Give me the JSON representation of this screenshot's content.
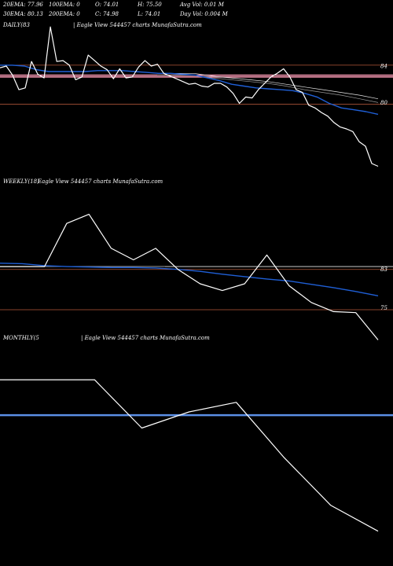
{
  "header": {
    "ema20": "20EMA: 77.96",
    "ema100": "100EMA: 0",
    "open": "O: 74.01",
    "high": "H: 75.50",
    "avgvol": "Avg Vol: 0.01 M",
    "ema30": "30EMA: 80.13",
    "ema200": "200EMA: 0",
    "close": "C: 74.98",
    "low": "L: 74.01",
    "dayvol": "Day Vol: 0.004  M"
  },
  "colors": {
    "background": "#000000",
    "price": "#ffffff",
    "ema": "#1f5fd6",
    "ref_line": "#e8e8e8",
    "pink_line": "#ff9db8",
    "brown_line": "#b4583a",
    "monthly_ema": "#5b8fe6"
  },
  "chart_data": [
    {
      "name_label": "DAILY(83",
      "title": "| Eagle   View  544457 charts MunafaSutra.com",
      "type": "line",
      "y_ticks": [
        "84",
        "80"
      ],
      "ylim": [
        71.4,
        87.8
      ],
      "series": [
        {
          "role": "price",
          "values": [
            83.8,
            84.0,
            83.0,
            81.4,
            81.6,
            84.5,
            83.1,
            82.7,
            88.3,
            84.5,
            84.6,
            84.1,
            82.5,
            82.8,
            85.2,
            84.6,
            84.0,
            83.6,
            82.6,
            83.7,
            82.7,
            82.8,
            83.9,
            84.6,
            84.0,
            84.2,
            83.2,
            82.9,
            82.6,
            82.3,
            82.0,
            82.1,
            81.8,
            81.7,
            82.1,
            82.1,
            81.7,
            81.0,
            79.9,
            80.6,
            80.5,
            81.4,
            82.1,
            82.8,
            83.2,
            83.7,
            82.8,
            81.4,
            81.1,
            79.7,
            79.4,
            78.9,
            78.5,
            77.8,
            77.3,
            77.1,
            76.8,
            75.7,
            75.2,
            73.3,
            73.0
          ]
        },
        {
          "role": "ema",
          "values": [
            84.1,
            84.1,
            84.0,
            83.6,
            83.4,
            83.4,
            83.4,
            83.4,
            83.5,
            83.5,
            83.5,
            83.4,
            83.3,
            83.2,
            83.2,
            83.1,
            83.0,
            82.7,
            82.4,
            82.0,
            81.8,
            81.6,
            81.5,
            81.4,
            81.3,
            81.0,
            80.6,
            79.9,
            79.4,
            79.2,
            79.0,
            78.7
          ]
        },
        {
          "role": "ref",
          "values": [
            83.0,
            83.0,
            83.0,
            82.7,
            82.5,
            82.3,
            82.1,
            81.8,
            81.4,
            81.1,
            80.8,
            80.4,
            80.0
          ]
        },
        {
          "role": "ref",
          "values": [
            83.2,
            83.2,
            83.2,
            82.9,
            82.7,
            82.5,
            82.3,
            82.0,
            81.7,
            81.4,
            81.1,
            80.8,
            80.4
          ]
        }
      ],
      "h_lines": [
        {
          "role": "pink",
          "value": 83.0
        },
        {
          "role": "pink",
          "value": 82.8
        },
        {
          "role": "brown",
          "value": 84.1
        },
        {
          "role": "brown",
          "value": 79.8
        }
      ]
    },
    {
      "name_label": "WEEKLY(18)",
      "title": "Eagle   View  544457 charts MunafaSutra.com",
      "type": "line",
      "y_ticks": [
        "83",
        "75"
      ],
      "ylim": [
        68.7,
        100
      ],
      "series": [
        {
          "role": "price",
          "values": [
            83.6,
            83.6,
            83.6,
            92.6,
            94.5,
            87.4,
            85.0,
            87.4,
            83.0,
            80.0,
            78.6,
            80.0,
            86.0,
            79.6,
            76.1,
            74.2,
            74.0,
            68.3
          ]
        },
        {
          "role": "ema",
          "values": [
            84.3,
            84.2,
            83.8,
            83.6,
            83.5,
            83.4,
            83.4,
            83.3,
            83.0,
            82.6,
            82.0,
            81.5,
            81.0,
            80.6,
            79.9,
            79.2,
            78.4,
            77.5
          ]
        },
        {
          "role": "ref",
          "values": [
            83.6,
            83.6,
            83.6,
            83.6,
            83.6,
            83.6,
            83.6,
            83.6
          ]
        }
      ],
      "h_lines": [
        {
          "role": "white",
          "value": 83.6
        },
        {
          "role": "brown",
          "value": 83.0
        },
        {
          "role": "brown",
          "value": 74.6
        }
      ]
    },
    {
      "name_label": "MONTHLY(5",
      "title": "| Eagle   View  544457 charts MunafaSutra.com",
      "type": "line",
      "y_ticks": [],
      "ylim": [
        44.5,
        106
      ],
      "series": [
        {
          "role": "price",
          "values": [
            95.0,
            95.0,
            95.0,
            80.0,
            85.0,
            88.0,
            71.0,
            56.0,
            48.0
          ]
        }
      ],
      "h_lines": [
        {
          "role": "monthly_ema",
          "value": 84.0
        }
      ]
    }
  ]
}
